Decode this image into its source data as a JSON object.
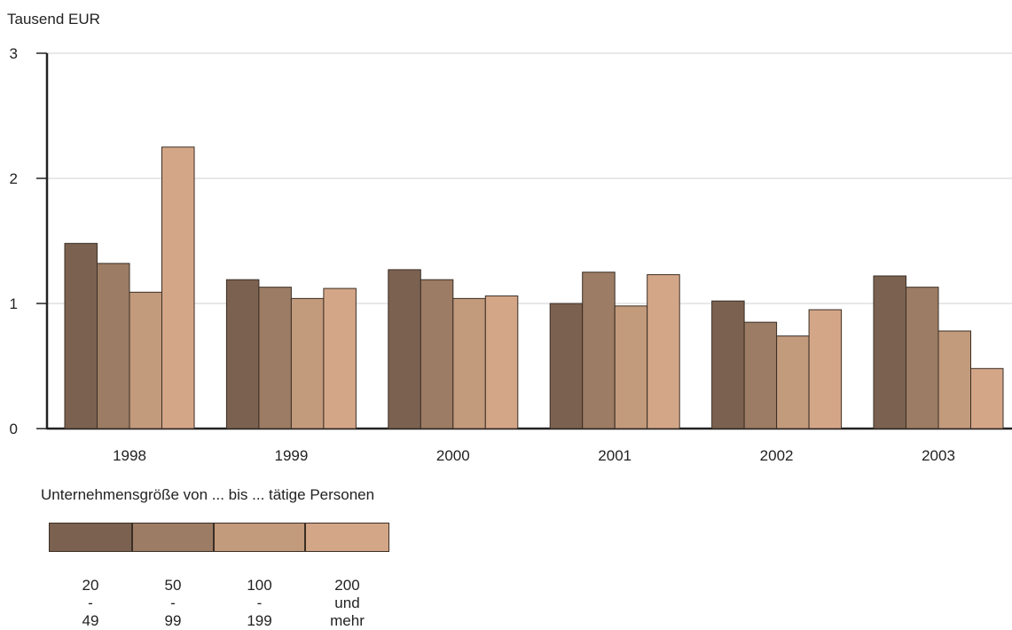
{
  "chart_data": {
    "type": "bar",
    "ylabel": "Tausend EUR",
    "categories": [
      "1998",
      "1999",
      "2000",
      "2001",
      "2002",
      "2003"
    ],
    "y_ticks": [
      "0",
      "1",
      "2",
      "3"
    ],
    "ylim": [
      0,
      3
    ],
    "grid": true,
    "legend_title": "Unternehmensgröße von ... bis ... tätige Personen",
    "legend_position": "bottom-left",
    "series": [
      {
        "name": "20 - 49",
        "color": "#7b6150",
        "values": [
          1.48,
          1.19,
          1.27,
          1.0,
          1.02,
          1.22
        ]
      },
      {
        "name": "50 - 99",
        "color": "#9c7c64",
        "values": [
          1.32,
          1.13,
          1.19,
          1.25,
          0.85,
          1.13
        ]
      },
      {
        "name": "100 - 199",
        "color": "#c29a7c",
        "values": [
          1.09,
          1.04,
          1.04,
          0.98,
          0.74,
          0.78
        ]
      },
      {
        "name": "200\nund mehr",
        "color": "#d4a688",
        "values": [
          2.25,
          1.12,
          1.06,
          1.23,
          0.95,
          0.48
        ]
      }
    ]
  }
}
